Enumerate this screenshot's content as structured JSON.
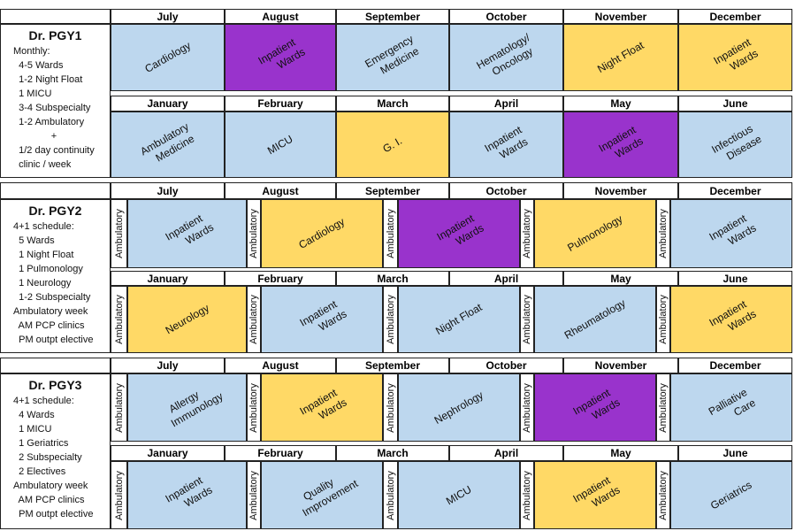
{
  "colors": {
    "blue": "#bdd7ee",
    "purple": "#9933cc",
    "yellow": "#ffd966"
  },
  "ambulatory_label": "Ambulatory",
  "pgy1": {
    "title": "Dr. PGY1",
    "lines": [
      "Monthly:",
      "  4-5 Wards",
      "  1-2 Night Float",
      "  1 MICU",
      "  3-4 Subspecialty",
      "  1-2 Ambulatory",
      "              +",
      "  1/2 day continuity",
      "  clinic / week"
    ],
    "months_top": [
      "July",
      "August",
      "September",
      "October",
      "November",
      "December"
    ],
    "rot_top": [
      {
        "text": "Cardiology",
        "color": "blue"
      },
      {
        "text": "Inpatient\n      Wards",
        "color": "purple"
      },
      {
        "text": "Emergency\n   Medicine",
        "color": "blue"
      },
      {
        "text": "Hematology/\n  Oncology",
        "color": "blue"
      },
      {
        "text": "Night Float",
        "color": "yellow"
      },
      {
        "text": "Inpatient\n    Wards",
        "color": "yellow"
      }
    ],
    "months_bottom": [
      "January",
      "February",
      "March",
      "April",
      "May",
      "June"
    ],
    "rot_bottom": [
      {
        "text": "Ambulatory\n   Medicine",
        "color": "blue"
      },
      {
        "text": "MICU",
        "color": "blue"
      },
      {
        "text": "G. I.",
        "color": "yellow"
      },
      {
        "text": "Inpatient\n   Wards",
        "color": "blue"
      },
      {
        "text": "Inpatient\n    Wards",
        "color": "purple"
      },
      {
        "text": "Infectious\n    Disease",
        "color": "blue"
      }
    ]
  },
  "pgy2": {
    "title": "Dr. PGY2",
    "lines": [
      "4+1 schedule:",
      "  5 Wards",
      "  1 Night Float",
      "  1 Pulmonology",
      "  1 Neurology",
      "  1-2 Subspecialty",
      "Ambulatory week",
      "  AM PCP clinics",
      "  PM outpt elective"
    ],
    "months_top": [
      "July",
      "August",
      "September",
      "October",
      "November",
      "December"
    ],
    "rot_top": [
      {
        "text": "Inpatient\n       Wards",
        "color": "blue"
      },
      {
        "text": "Cardiology",
        "color": "yellow"
      },
      {
        "text": "Inpatient\n      Wards",
        "color": "purple"
      },
      {
        "text": "Pulmonology",
        "color": "yellow"
      },
      {
        "text": "Inpatient\n      Wards",
        "color": "blue"
      }
    ],
    "months_bottom": [
      "January",
      "February",
      "March",
      "April",
      "May",
      "June"
    ],
    "rot_bottom": [
      {
        "text": "Neurology",
        "color": "yellow"
      },
      {
        "text": "Inpatient\n      Wards",
        "color": "blue"
      },
      {
        "text": "Night Float",
        "color": "blue"
      },
      {
        "text": "Rheumatology",
        "color": "blue"
      },
      {
        "text": "Inpatient\n      Wards",
        "color": "yellow"
      }
    ]
  },
  "pgy3": {
    "title": "Dr. PGY3",
    "lines": [
      "4+1 schedule:",
      "  4 Wards",
      "  1 MICU",
      "  1 Geriatrics",
      "  2 Subspecialty",
      "  2 Electives",
      "Ambulatory week",
      "  AM PCP clinics",
      "  PM outpt elective"
    ],
    "months_top": [
      "July",
      "August",
      "September",
      "October",
      "November",
      "December"
    ],
    "rot_top": [
      {
        "text": "Allergy\n     Immunology",
        "color": "blue"
      },
      {
        "text": "Inpatient\n      Wards",
        "color": "yellow"
      },
      {
        "text": "Nephrology",
        "color": "blue"
      },
      {
        "text": "Inpatient\n      Wards",
        "color": "purple"
      },
      {
        "text": "Palliative\n        Care",
        "color": "blue"
      }
    ],
    "months_bottom": [
      "January",
      "February",
      "March",
      "April",
      "May",
      "June"
    ],
    "rot_bottom": [
      {
        "text": "Inpatient\n      Wards",
        "color": "blue"
      },
      {
        "text": "Quality\n    Improvement",
        "color": "blue"
      },
      {
        "text": "MICU",
        "color": "blue"
      },
      {
        "text": "Inpatient\n      Wards",
        "color": "yellow"
      },
      {
        "text": "Geriatrics",
        "color": "blue"
      }
    ]
  }
}
